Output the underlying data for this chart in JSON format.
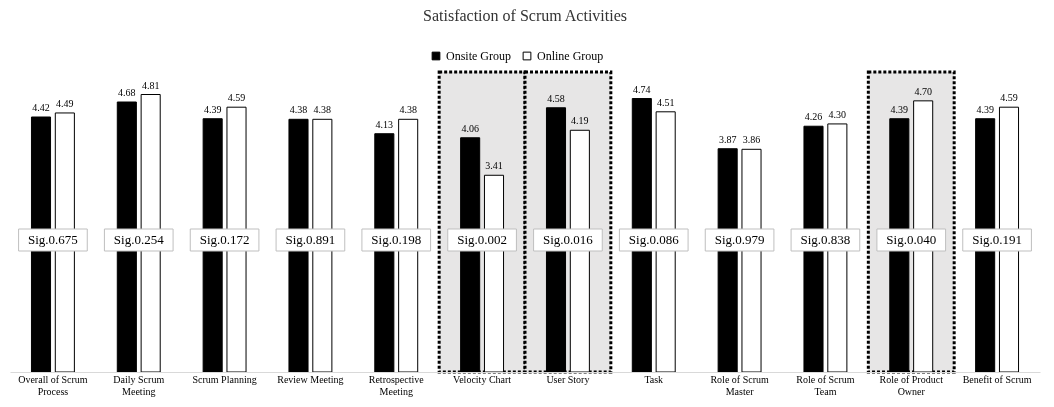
{
  "chart_data": {
    "type": "bar",
    "title": "Satisfaction of Scrum Activities",
    "categories": [
      "Overall of Scrum Process",
      "Daily Scrum Meeting",
      "Scrum Planning",
      "Review Meeting",
      "Retrospective Meeting",
      "Velocity Chart",
      "User Story",
      "Task",
      "Role of Scrum Master",
      "Role of Scrum Team",
      "Role of Product Owner",
      "Benefit of Scrum"
    ],
    "series": [
      {
        "name": "Onsite Group",
        "color": "#000000",
        "values": [
          4.42,
          4.68,
          4.39,
          4.38,
          4.13,
          4.06,
          4.58,
          4.74,
          3.87,
          4.26,
          4.39,
          4.39
        ],
        "value_labels": [
          "4.42",
          "4.68",
          "4.39",
          "4.38",
          "4.13",
          "4.06",
          "4.58",
          "4.74",
          "3.87",
          "4.26",
          "4.39",
          "4.39"
        ]
      },
      {
        "name": "Online Group",
        "color": "#ffffff",
        "values": [
          4.49,
          4.81,
          4.59,
          4.38,
          4.38,
          3.41,
          4.19,
          4.51,
          3.86,
          4.3,
          4.7,
          4.59
        ],
        "value_labels": [
          "4.49",
          "4.81",
          "4.59",
          "4.38",
          "4.38",
          "3.41",
          "4.19",
          "4.51",
          "3.86",
          "4.30",
          "4.70",
          "4.59"
        ]
      }
    ],
    "ylim": [
      0,
      5.2
    ],
    "tick_labels": "x",
    "legend": "top",
    "grid": false,
    "bands": [
      {
        "axis": "x",
        "from": "Velocity Chart",
        "to": "Velocity Chart",
        "color": "#e7e6e6"
      },
      {
        "axis": "x",
        "from": "User Story",
        "to": "User Story",
        "color": "#e7e6e6"
      },
      {
        "axis": "x",
        "from": "Role of Product Owner",
        "to": "Role of Product Owner",
        "color": "#e7e6e6"
      }
    ],
    "annotations": [
      "Sig.0.675",
      "Sig.0.254",
      "Sig.0.172",
      "Sig.0.891",
      "Sig.0.198",
      "Sig.0.002",
      "Sig.0.016",
      "Sig.0.086",
      "Sig.0.979",
      "Sig.0.838",
      "Sig.0.040",
      "Sig.0.191"
    ]
  }
}
